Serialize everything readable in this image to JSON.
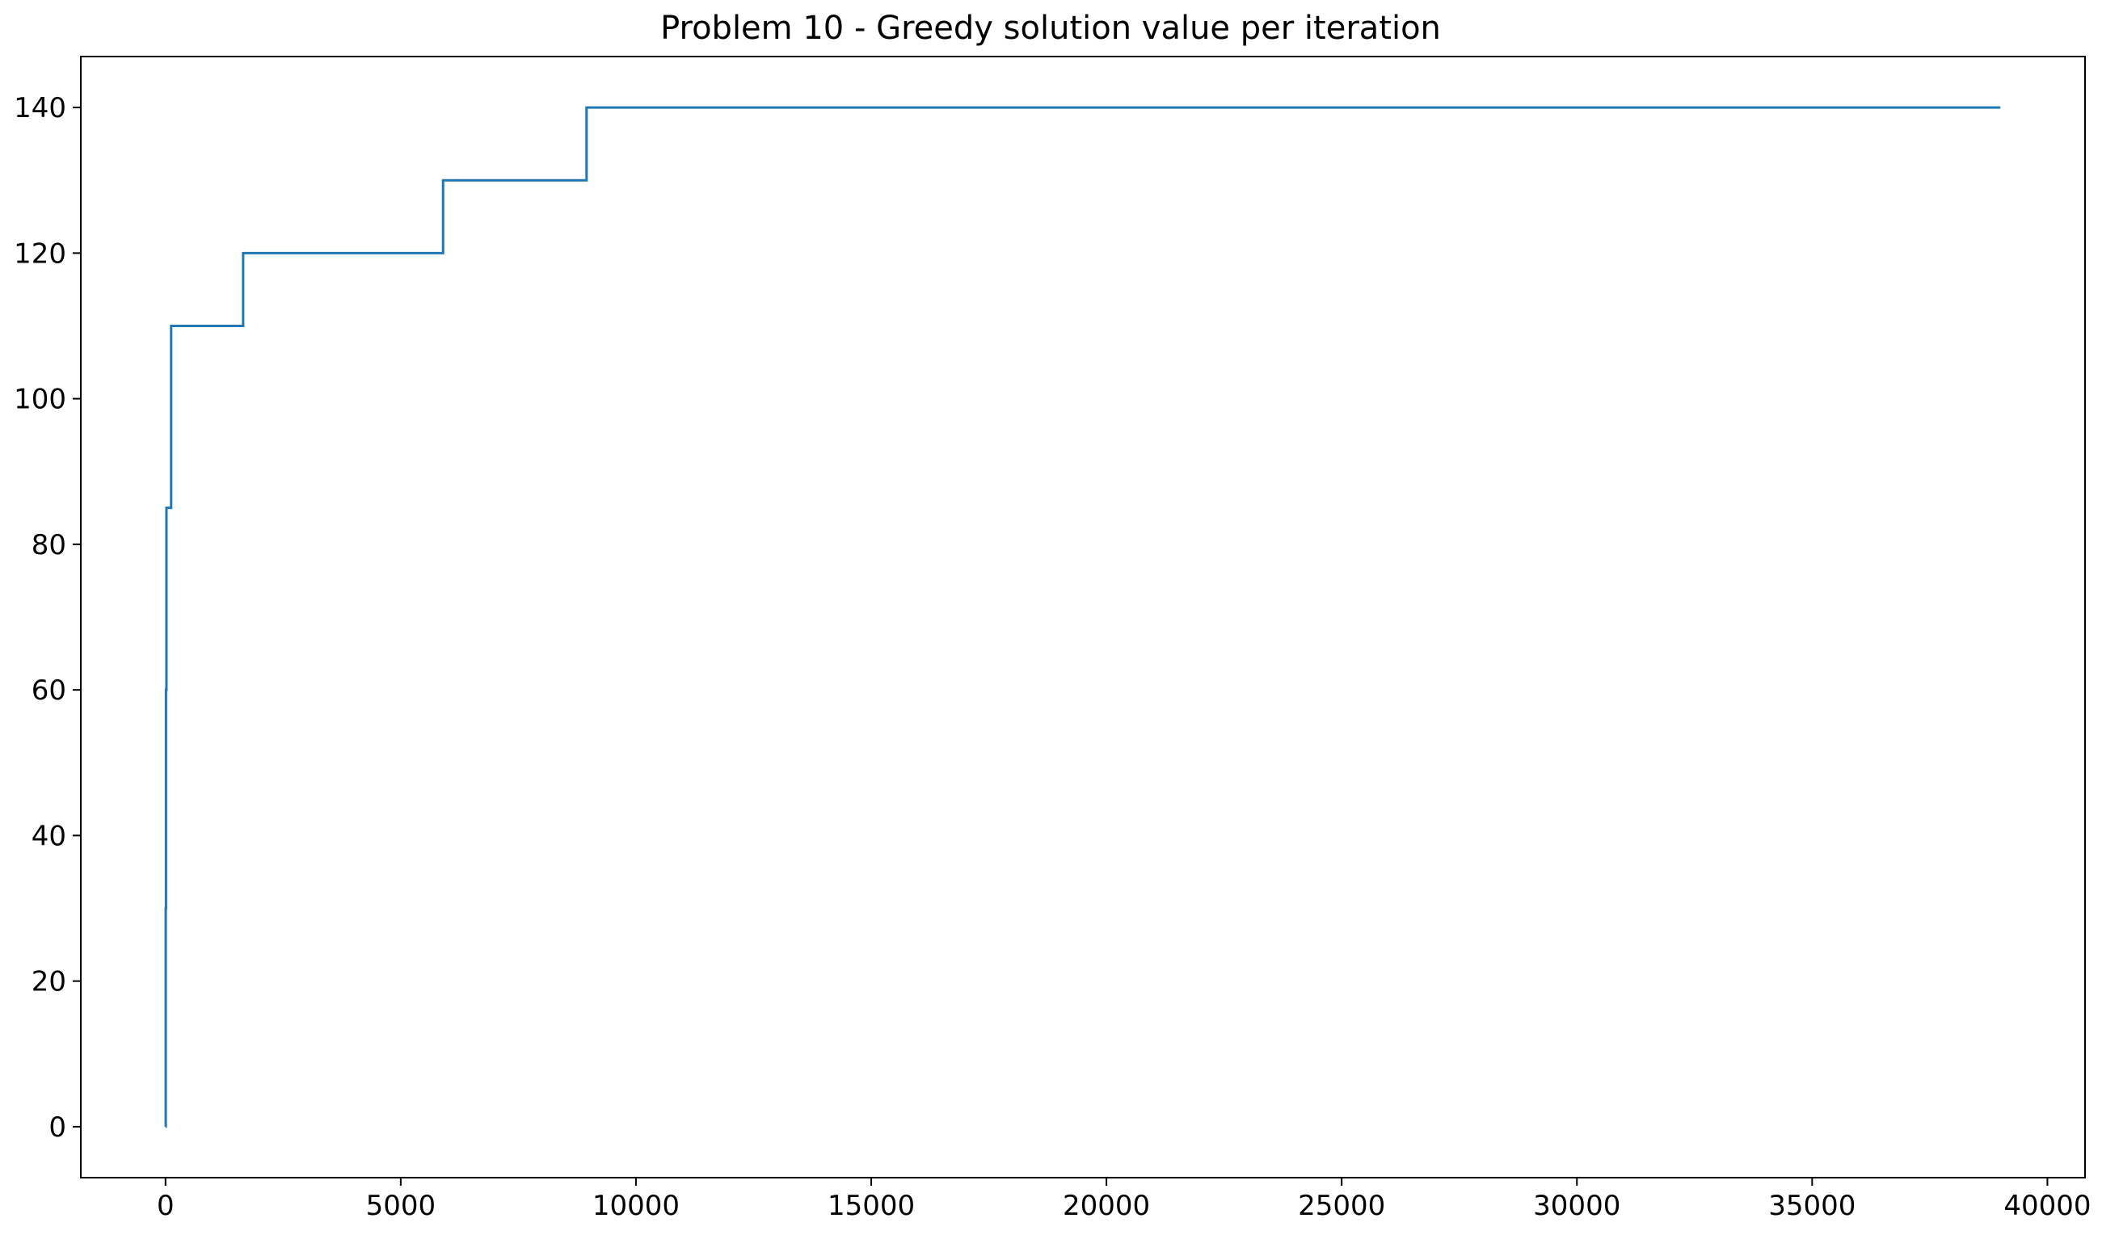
{
  "chart_data": {
    "type": "line",
    "title": "Problem 10 - Greedy solution value per iteration",
    "xlabel": "",
    "ylabel": "",
    "xlim": [
      -1800,
      40800
    ],
    "ylim": [
      -7,
      147
    ],
    "xticks": [
      0,
      5000,
      10000,
      15000,
      20000,
      25000,
      30000,
      35000,
      40000
    ],
    "xtick_labels": [
      "0",
      "5000",
      "10000",
      "15000",
      "20000",
      "25000",
      "30000",
      "35000",
      "40000"
    ],
    "yticks": [
      0,
      20,
      40,
      60,
      80,
      100,
      120,
      140
    ],
    "ytick_labels": [
      "0",
      "20",
      "40",
      "60",
      "80",
      "100",
      "120",
      "140"
    ],
    "grid": false,
    "legend": "none",
    "series": [
      {
        "name": "",
        "color": "#1f77b4",
        "step": "post",
        "x": [
          0,
          5,
          10,
          20,
          60,
          120,
          1650,
          5900,
          8950,
          39000
        ],
        "y": [
          0,
          30,
          60,
          85,
          85,
          110,
          120,
          130,
          140,
          140
        ]
      }
    ]
  }
}
